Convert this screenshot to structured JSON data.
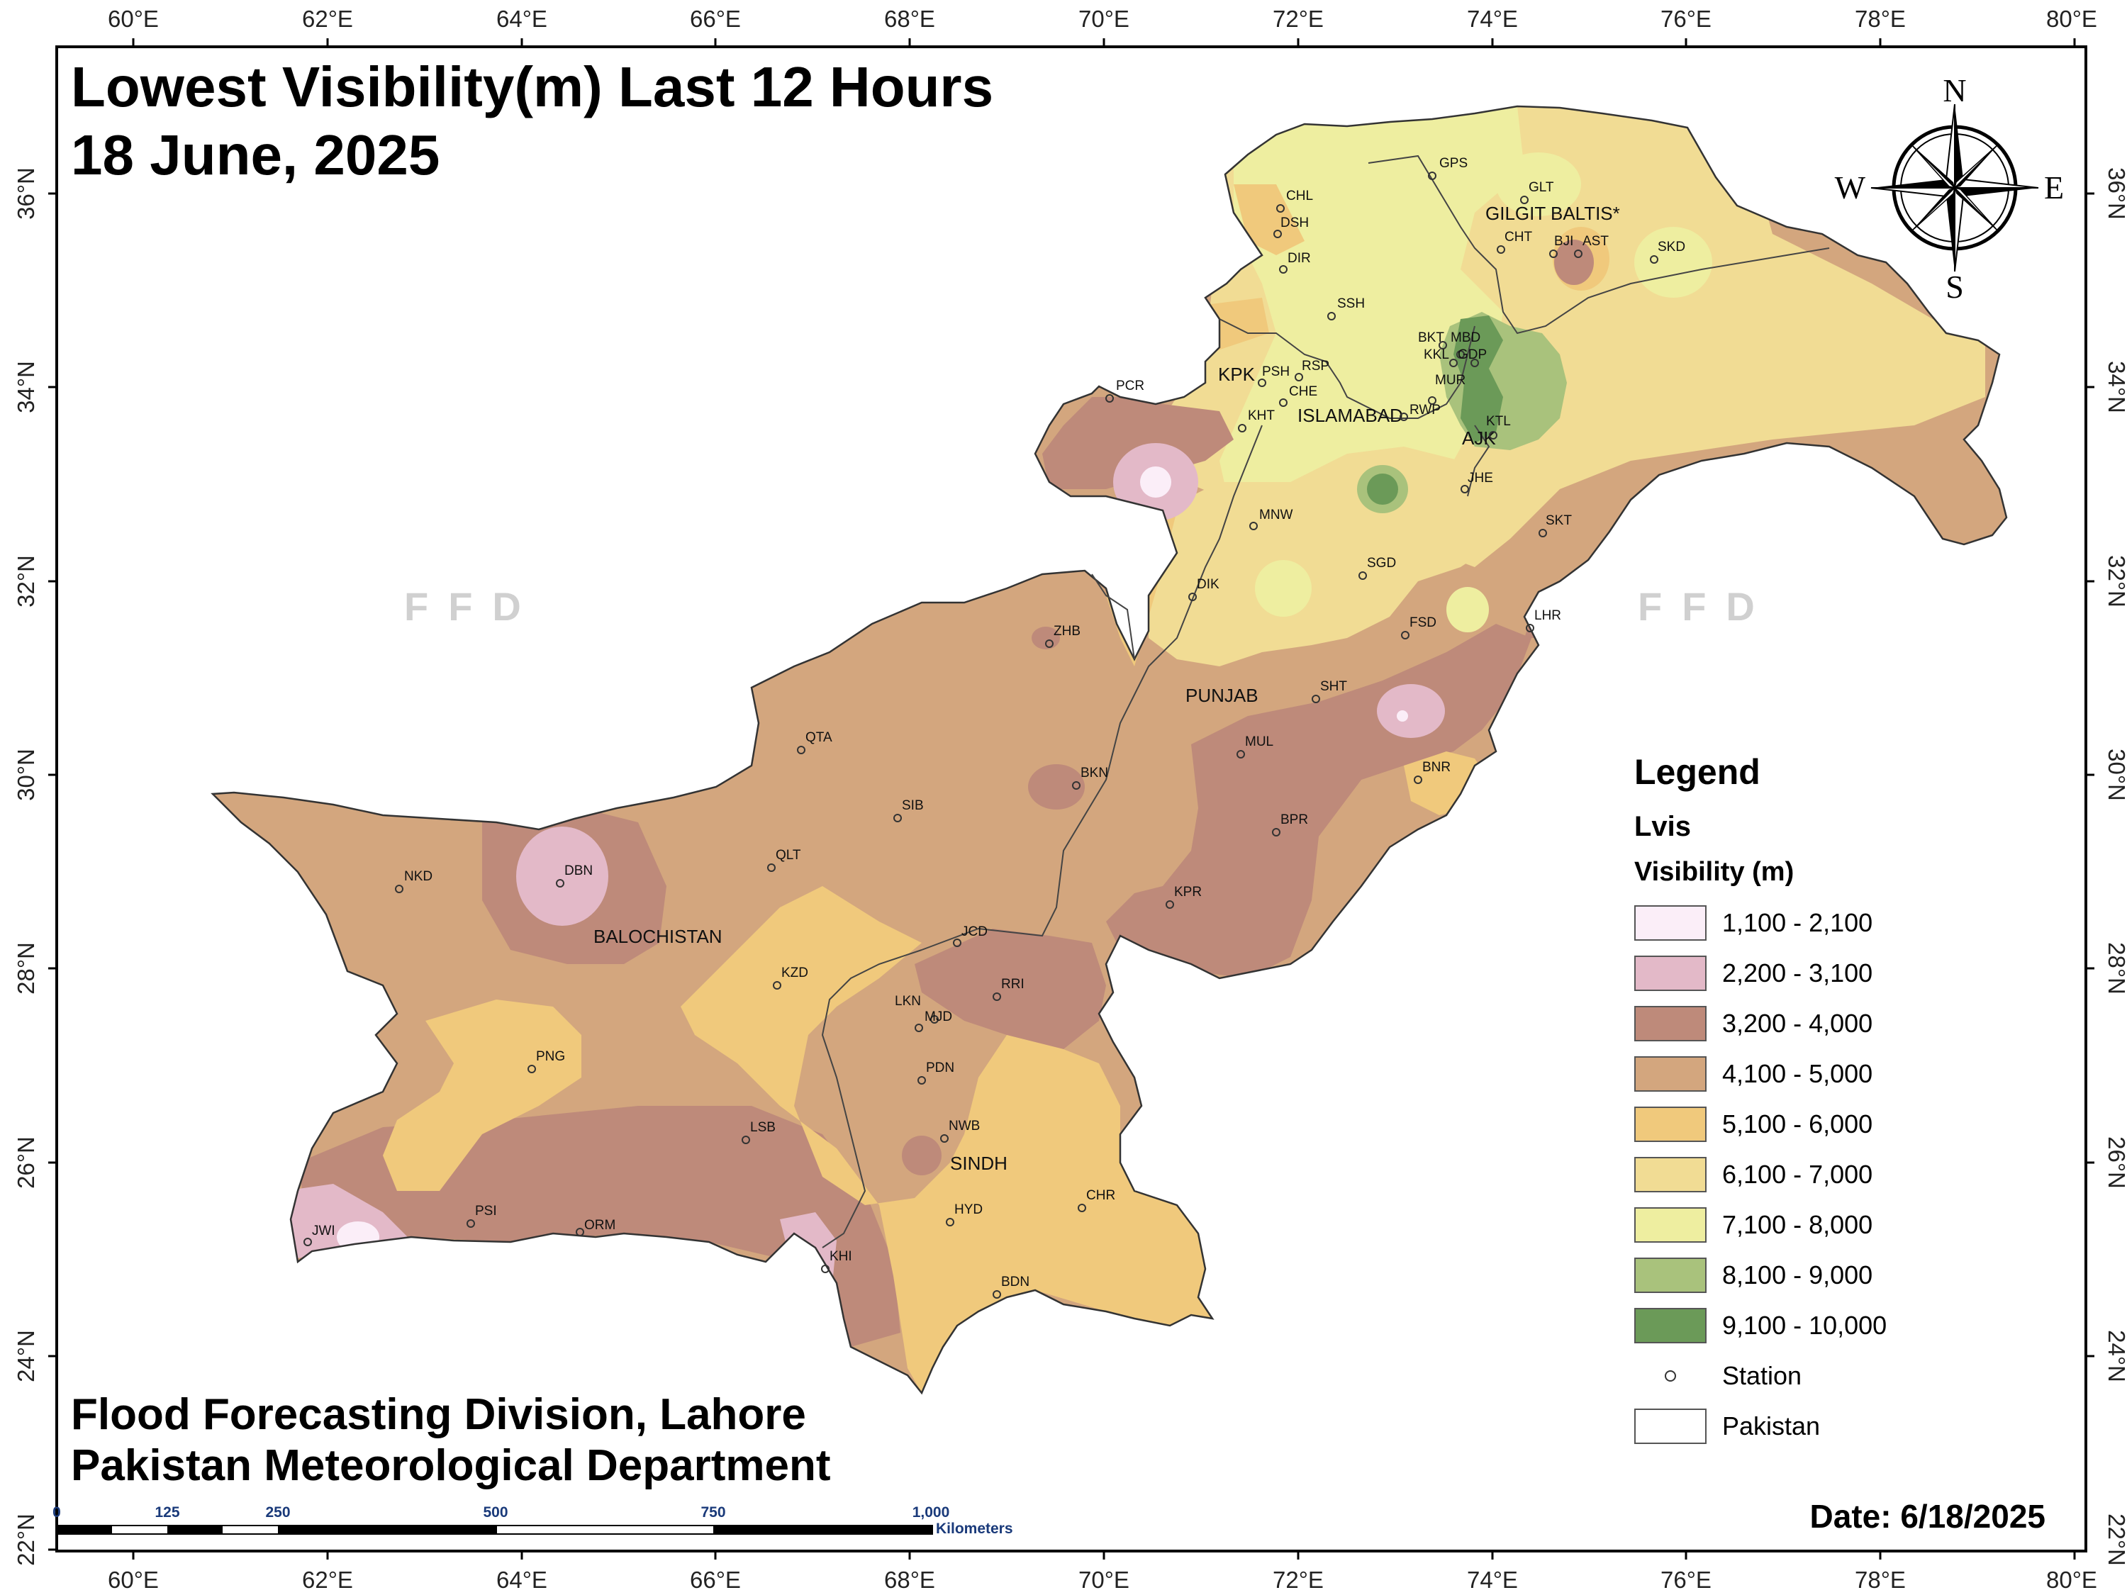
{
  "title": {
    "line1": "Lowest Visibility(m) Last 12 Hours",
    "line2": "18 June, 2025"
  },
  "credit": {
    "line1": "Flood Forecasting Division, Lahore",
    "line2": "Pakistan Meteorological Department"
  },
  "date": "Date: 6/18/2025",
  "watermark": "FFD",
  "compass": {
    "n": "N",
    "s": "S",
    "e": "E",
    "w": "W"
  },
  "axes": {
    "lon_labels": [
      "60°E",
      "62°E",
      "64°E",
      "66°E",
      "68°E",
      "70°E",
      "72°E",
      "74°E",
      "76°E",
      "78°E",
      "80°E"
    ],
    "lat_labels": [
      "36°N",
      "34°N",
      "32°N",
      "30°N",
      "28°N",
      "26°N",
      "24°N",
      "22°N"
    ]
  },
  "legend": {
    "heading": "Legend",
    "layer": "Lvis",
    "field": "Visibility (m)",
    "classes": [
      {
        "label": "1,100 - 2,100",
        "color": "#fbeef8"
      },
      {
        "label": "2,200 - 3,100",
        "color": "#e3b9c8"
      },
      {
        "label": "3,200 - 4,000",
        "color": "#be8a7a"
      },
      {
        "label": "4,100 - 5,000",
        "color": "#d3a67e"
      },
      {
        "label": "5,100 - 6,000",
        "color": "#f0c97c"
      },
      {
        "label": "6,100 - 7,000",
        "color": "#f1dc94"
      },
      {
        "label": "7,100 - 8,000",
        "color": "#eeeea0"
      },
      {
        "label": "8,100 - 9,000",
        "color": "#a9c27c"
      },
      {
        "label": "9,100 - 10,000",
        "color": "#6b9a58"
      }
    ],
    "station_label": "Station",
    "pakistan_label": "Pakistan"
  },
  "regions": [
    "GILGIT BALTIS*",
    "KPK",
    "ISLAMABAD",
    "AJK",
    "PUNJAB",
    "BALOCHISTAN",
    "SINDH"
  ],
  "stations": [
    "GPS",
    "GLT",
    "CHL",
    "DSH",
    "CHT",
    "BJI",
    "AST",
    "SKD",
    "DIR",
    "SSH",
    "BKT",
    "MBD",
    "KKL",
    "GDP",
    "PSH",
    "RSP",
    "MUR",
    "CHE",
    "RWP",
    "KHT",
    "KTL",
    "PCR",
    "JHE",
    "MNW",
    "SKT",
    "SGD",
    "DIK",
    "LHR",
    "FSD",
    "ZHB",
    "SHT",
    "MUL",
    "QTA",
    "BKN",
    "BNR",
    "SIB",
    "BPR",
    "NKD",
    "DBN",
    "QLT",
    "KPR",
    "JCD",
    "KZD",
    "RRI",
    "LKN",
    "MJD",
    "PNG",
    "PDN",
    "NWB",
    "LSB",
    "CHR",
    "HYD",
    "JWI",
    "PSI",
    "ORM",
    "KHI",
    "BDN"
  ],
  "scale_bar": {
    "ticks": [
      "0",
      "125",
      "250",
      "500",
      "750",
      "1,000"
    ],
    "unit": "Kilometers"
  }
}
